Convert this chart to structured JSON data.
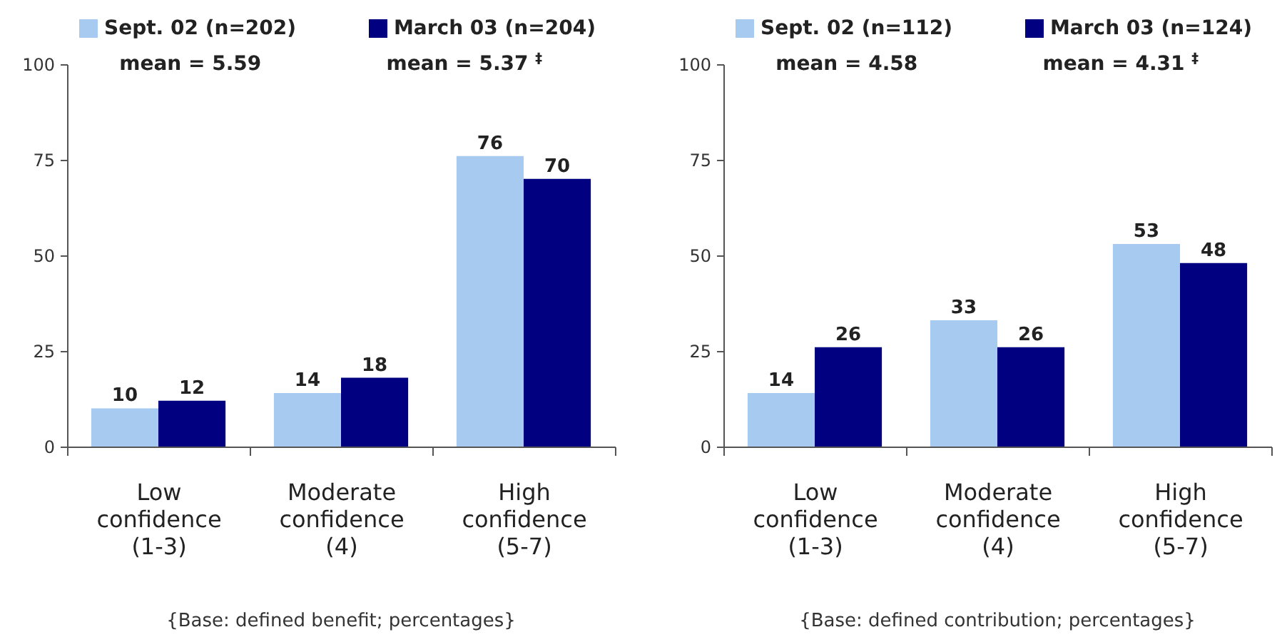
{
  "chart_data": [
    {
      "type": "bar",
      "categories": [
        "Low confidence (1-3)",
        "Moderate confidence (4)",
        "High confidence (5-7)"
      ],
      "series": [
        {
          "name": "Sept. 02 (n=202)",
          "color": "#a6caf0",
          "values": [
            10,
            14,
            76
          ]
        },
        {
          "name": "March 03 (n=204)",
          "color": "#000080",
          "values": [
            12,
            18,
            70
          ]
        }
      ],
      "ylim": [
        0,
        100
      ],
      "yticks": [
        0,
        25,
        50,
        75,
        100
      ],
      "data_labels": true,
      "legend": "top",
      "annotations": [
        "mean = 5.59",
        "mean = 5.37 $^{‡}$",
        "{Base: defined benefit; percentages}"
      ]
    },
    {
      "type": "bar",
      "categories": [
        "Low confidence (1-3)",
        "Moderate confidence (4)",
        "High confidence (5-7)"
      ],
      "series": [
        {
          "name": "Sept. 02 (n=112)",
          "color": "#a6caf0",
          "values": [
            14,
            33,
            53
          ]
        },
        {
          "name": "March 03 (n=124)",
          "color": "#000080",
          "values": [
            26,
            26,
            48
          ]
        }
      ],
      "ylim": [
        0,
        100
      ],
      "yticks": [
        0,
        25,
        50,
        75,
        100
      ],
      "data_labels": true,
      "legend": "top",
      "annotations": [
        "mean = 4.58",
        "mean = 4.31 $^{‡}$",
        "{Base: defined contribution; percentages}"
      ]
    }
  ]
}
